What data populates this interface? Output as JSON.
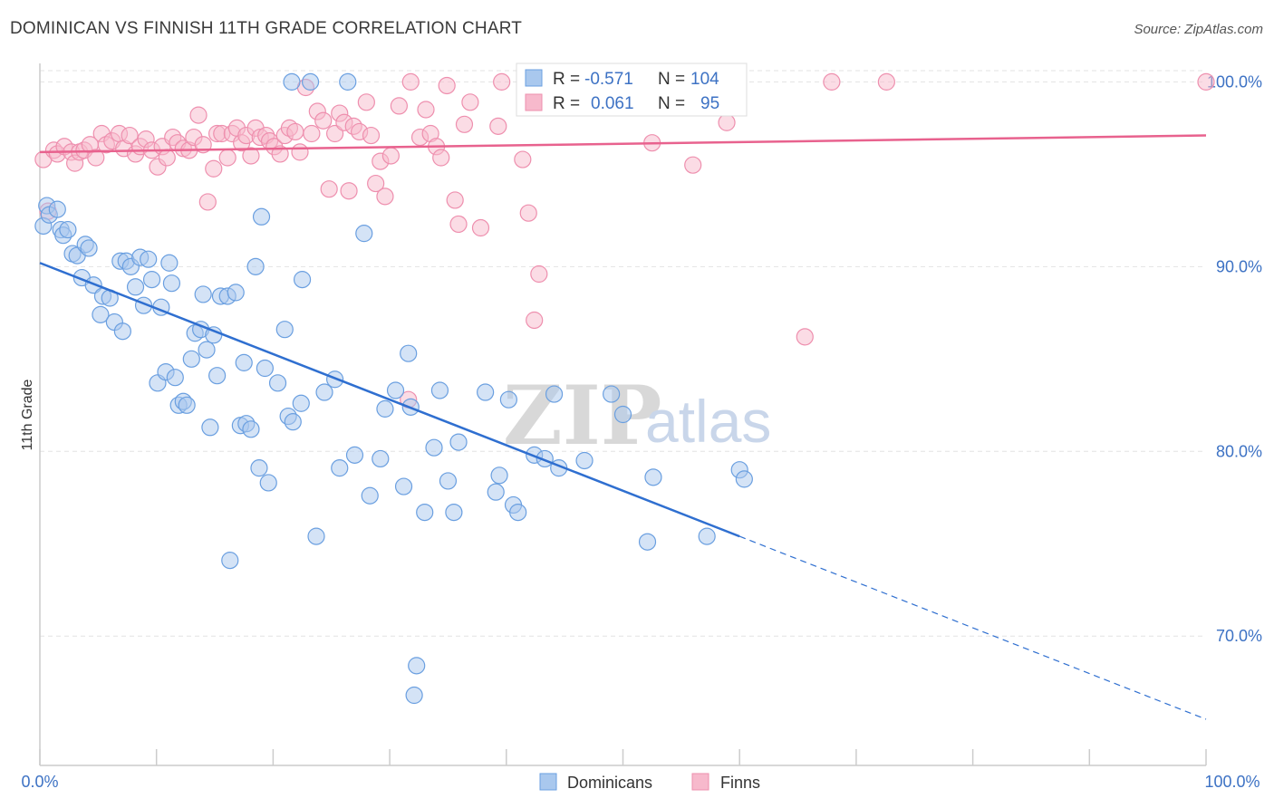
{
  "header": {
    "title": "DOMINICAN VS FINNISH 11TH GRADE CORRELATION CHART",
    "source": "Source: ZipAtlas.com"
  },
  "watermark": {
    "part1": "ZIP",
    "part2": "atlas"
  },
  "stats_legend": {
    "rows": [
      {
        "r_label": "R =",
        "r_value": "-0.571",
        "n_label": "N =",
        "n_value": "104",
        "color": "#6a9fe0"
      },
      {
        "r_label": "R =",
        "r_value": "0.061",
        "n_label": "N =",
        "n_value": "95",
        "color": "#f08cab"
      }
    ]
  },
  "colors": {
    "blue_fill": "#a9c8ee",
    "blue_stroke": "#6a9fe0",
    "blue_line": "#2f6fd0",
    "pink_fill": "#f7b9cc",
    "pink_stroke": "#ee8fae",
    "pink_line": "#e8628e",
    "grid": "#e3e3e3",
    "axis": "#cccccc"
  },
  "chart_data": {
    "type": "scatter",
    "title": "DOMINICAN VS FINNISH 11TH GRADE CORRELATION CHART",
    "xlabel": "",
    "ylabel": "11th Grade",
    "xlim": [
      0,
      100
    ],
    "ylim": [
      63,
      101
    ],
    "x_tick_labels": [
      "0.0%",
      "100.0%"
    ],
    "y_ticks": [
      70,
      80,
      90,
      100
    ],
    "y_tick_labels": [
      "70.0%",
      "80.0%",
      "90.0%",
      "100.0%"
    ],
    "legend": [
      "Dominicans",
      "Finns"
    ],
    "series": [
      {
        "name": "Dominicans",
        "r": -0.571,
        "n": 104,
        "trend": {
          "x0": 0,
          "y0": 90.2,
          "x1": 60,
          "y1": 75.4,
          "dash_to_x": 100,
          "dash_to_y": 65.5
        },
        "points": [
          [
            0.3,
            92.2
          ],
          [
            0.6,
            93.3
          ],
          [
            0.8,
            92.8
          ],
          [
            1.5,
            93.1
          ],
          [
            1.8,
            92.0
          ],
          [
            2.0,
            91.7
          ],
          [
            2.4,
            92.0
          ],
          [
            2.8,
            90.7
          ],
          [
            3.2,
            90.6
          ],
          [
            3.6,
            89.4
          ],
          [
            3.9,
            91.2
          ],
          [
            4.2,
            91.0
          ],
          [
            4.6,
            89.0
          ],
          [
            5.2,
            87.4
          ],
          [
            5.4,
            88.4
          ],
          [
            6.0,
            88.3
          ],
          [
            6.4,
            87.0
          ],
          [
            6.9,
            90.3
          ],
          [
            7.1,
            86.5
          ],
          [
            7.4,
            90.3
          ],
          [
            7.8,
            90.0
          ],
          [
            8.2,
            88.9
          ],
          [
            8.6,
            90.5
          ],
          [
            8.9,
            87.9
          ],
          [
            9.3,
            90.4
          ],
          [
            9.6,
            89.3
          ],
          [
            10.1,
            83.7
          ],
          [
            10.4,
            87.8
          ],
          [
            10.8,
            84.3
          ],
          [
            11.1,
            90.2
          ],
          [
            11.3,
            89.1
          ],
          [
            11.6,
            84.0
          ],
          [
            11.9,
            82.5
          ],
          [
            12.3,
            82.7
          ],
          [
            12.6,
            82.5
          ],
          [
            13.0,
            85.0
          ],
          [
            13.3,
            86.4
          ],
          [
            13.8,
            86.6
          ],
          [
            14.0,
            88.5
          ],
          [
            14.3,
            85.5
          ],
          [
            14.6,
            81.3
          ],
          [
            14.9,
            86.3
          ],
          [
            15.2,
            84.1
          ],
          [
            15.5,
            88.4
          ],
          [
            16.1,
            88.4
          ],
          [
            16.3,
            74.1
          ],
          [
            16.8,
            88.6
          ],
          [
            17.2,
            81.4
          ],
          [
            17.5,
            84.8
          ],
          [
            17.7,
            81.5
          ],
          [
            18.1,
            81.2
          ],
          [
            18.5,
            90.0
          ],
          [
            18.8,
            79.1
          ],
          [
            19.0,
            92.7
          ],
          [
            19.3,
            84.5
          ],
          [
            19.6,
            78.3
          ],
          [
            20.4,
            83.7
          ],
          [
            21.0,
            86.6
          ],
          [
            21.3,
            81.9
          ],
          [
            21.7,
            81.6
          ],
          [
            22.4,
            82.6
          ],
          [
            22.5,
            89.3
          ],
          [
            21.6,
            100.0
          ],
          [
            23.2,
            100.0
          ],
          [
            23.7,
            75.4
          ],
          [
            24.4,
            83.2
          ],
          [
            25.3,
            83.9
          ],
          [
            25.7,
            79.1
          ],
          [
            26.4,
            100.0
          ],
          [
            27.0,
            79.8
          ],
          [
            27.8,
            91.8
          ],
          [
            28.3,
            77.6
          ],
          [
            29.2,
            79.6
          ],
          [
            29.6,
            82.3
          ],
          [
            30.5,
            83.3
          ],
          [
            31.2,
            78.1
          ],
          [
            31.6,
            85.3
          ],
          [
            31.8,
            82.4
          ],
          [
            32.3,
            68.4
          ],
          [
            32.1,
            66.8
          ],
          [
            33.0,
            76.7
          ],
          [
            33.8,
            80.2
          ],
          [
            34.3,
            83.3
          ],
          [
            35.0,
            78.4
          ],
          [
            35.5,
            76.7
          ],
          [
            35.9,
            80.5
          ],
          [
            38.2,
            83.2
          ],
          [
            39.1,
            77.8
          ],
          [
            39.4,
            78.7
          ],
          [
            40.2,
            82.8
          ],
          [
            40.6,
            77.1
          ],
          [
            41.0,
            76.7
          ],
          [
            42.4,
            79.8
          ],
          [
            43.3,
            79.6
          ],
          [
            44.1,
            83.1
          ],
          [
            44.5,
            79.1
          ],
          [
            46.7,
            79.5
          ],
          [
            49.0,
            83.1
          ],
          [
            50.0,
            82.0
          ],
          [
            52.1,
            75.1
          ],
          [
            52.6,
            78.6
          ],
          [
            57.2,
            75.4
          ],
          [
            60.0,
            79.0
          ],
          [
            60.4,
            78.5
          ]
        ]
      },
      {
        "name": "Finns",
        "r": 0.061,
        "n": 95,
        "trend": {
          "x0": 0,
          "y0": 96.2,
          "x1": 100,
          "y1": 97.1
        },
        "points": [
          [
            0.3,
            95.8
          ],
          [
            0.7,
            93.0
          ],
          [
            1.2,
            96.3
          ],
          [
            1.5,
            96.1
          ],
          [
            2.1,
            96.5
          ],
          [
            2.7,
            96.2
          ],
          [
            3.0,
            95.6
          ],
          [
            3.4,
            96.2
          ],
          [
            3.8,
            96.3
          ],
          [
            4.3,
            96.6
          ],
          [
            4.8,
            95.9
          ],
          [
            5.3,
            97.2
          ],
          [
            5.7,
            96.6
          ],
          [
            6.2,
            96.8
          ],
          [
            6.8,
            97.2
          ],
          [
            7.2,
            96.4
          ],
          [
            7.7,
            97.1
          ],
          [
            8.2,
            96.1
          ],
          [
            8.6,
            96.5
          ],
          [
            9.1,
            96.9
          ],
          [
            9.6,
            96.3
          ],
          [
            10.1,
            95.4
          ],
          [
            10.5,
            96.5
          ],
          [
            10.9,
            95.9
          ],
          [
            11.4,
            97.0
          ],
          [
            11.8,
            96.7
          ],
          [
            12.3,
            96.4
          ],
          [
            12.8,
            96.3
          ],
          [
            13.2,
            97.0
          ],
          [
            13.6,
            98.2
          ],
          [
            14.0,
            96.6
          ],
          [
            14.4,
            93.5
          ],
          [
            14.9,
            95.3
          ],
          [
            15.2,
            97.2
          ],
          [
            15.6,
            97.2
          ],
          [
            16.1,
            95.9
          ],
          [
            16.5,
            97.2
          ],
          [
            16.9,
            97.5
          ],
          [
            17.3,
            96.7
          ],
          [
            17.7,
            97.1
          ],
          [
            18.1,
            96.0
          ],
          [
            18.5,
            97.5
          ],
          [
            18.9,
            97.0
          ],
          [
            19.4,
            97.1
          ],
          [
            19.7,
            96.8
          ],
          [
            20.1,
            96.5
          ],
          [
            20.6,
            96.1
          ],
          [
            21.0,
            97.1
          ],
          [
            21.4,
            97.5
          ],
          [
            21.9,
            97.3
          ],
          [
            22.3,
            96.2
          ],
          [
            22.8,
            99.7
          ],
          [
            23.3,
            97.2
          ],
          [
            23.8,
            98.4
          ],
          [
            24.3,
            97.9
          ],
          [
            24.8,
            94.2
          ],
          [
            25.3,
            97.2
          ],
          [
            25.7,
            98.3
          ],
          [
            26.1,
            97.8
          ],
          [
            26.5,
            94.1
          ],
          [
            26.9,
            97.6
          ],
          [
            27.4,
            97.3
          ],
          [
            28.0,
            98.9
          ],
          [
            28.4,
            97.1
          ],
          [
            28.8,
            94.5
          ],
          [
            29.2,
            95.7
          ],
          [
            29.6,
            93.8
          ],
          [
            30.1,
            96.0
          ],
          [
            30.8,
            98.7
          ],
          [
            31.6,
            82.8
          ],
          [
            31.8,
            100.0
          ],
          [
            32.6,
            97.0
          ],
          [
            33.1,
            98.5
          ],
          [
            33.5,
            97.2
          ],
          [
            34.0,
            96.5
          ],
          [
            34.4,
            95.9
          ],
          [
            34.9,
            99.8
          ],
          [
            35.6,
            93.6
          ],
          [
            35.9,
            92.3
          ],
          [
            36.4,
            97.7
          ],
          [
            36.9,
            98.9
          ],
          [
            37.8,
            92.1
          ],
          [
            39.3,
            97.6
          ],
          [
            39.6,
            100.0
          ],
          [
            41.4,
            95.8
          ],
          [
            41.9,
            92.9
          ],
          [
            42.4,
            87.1
          ],
          [
            42.8,
            89.6
          ],
          [
            52.5,
            96.7
          ],
          [
            56.0,
            95.5
          ],
          [
            58.9,
            97.8
          ],
          [
            65.6,
            86.2
          ],
          [
            67.9,
            100.0
          ],
          [
            72.6,
            100.0
          ],
          [
            100.0,
            100.0
          ]
        ]
      }
    ]
  },
  "bottom_legend": {
    "items": [
      "Dominicans",
      "Finns"
    ]
  }
}
